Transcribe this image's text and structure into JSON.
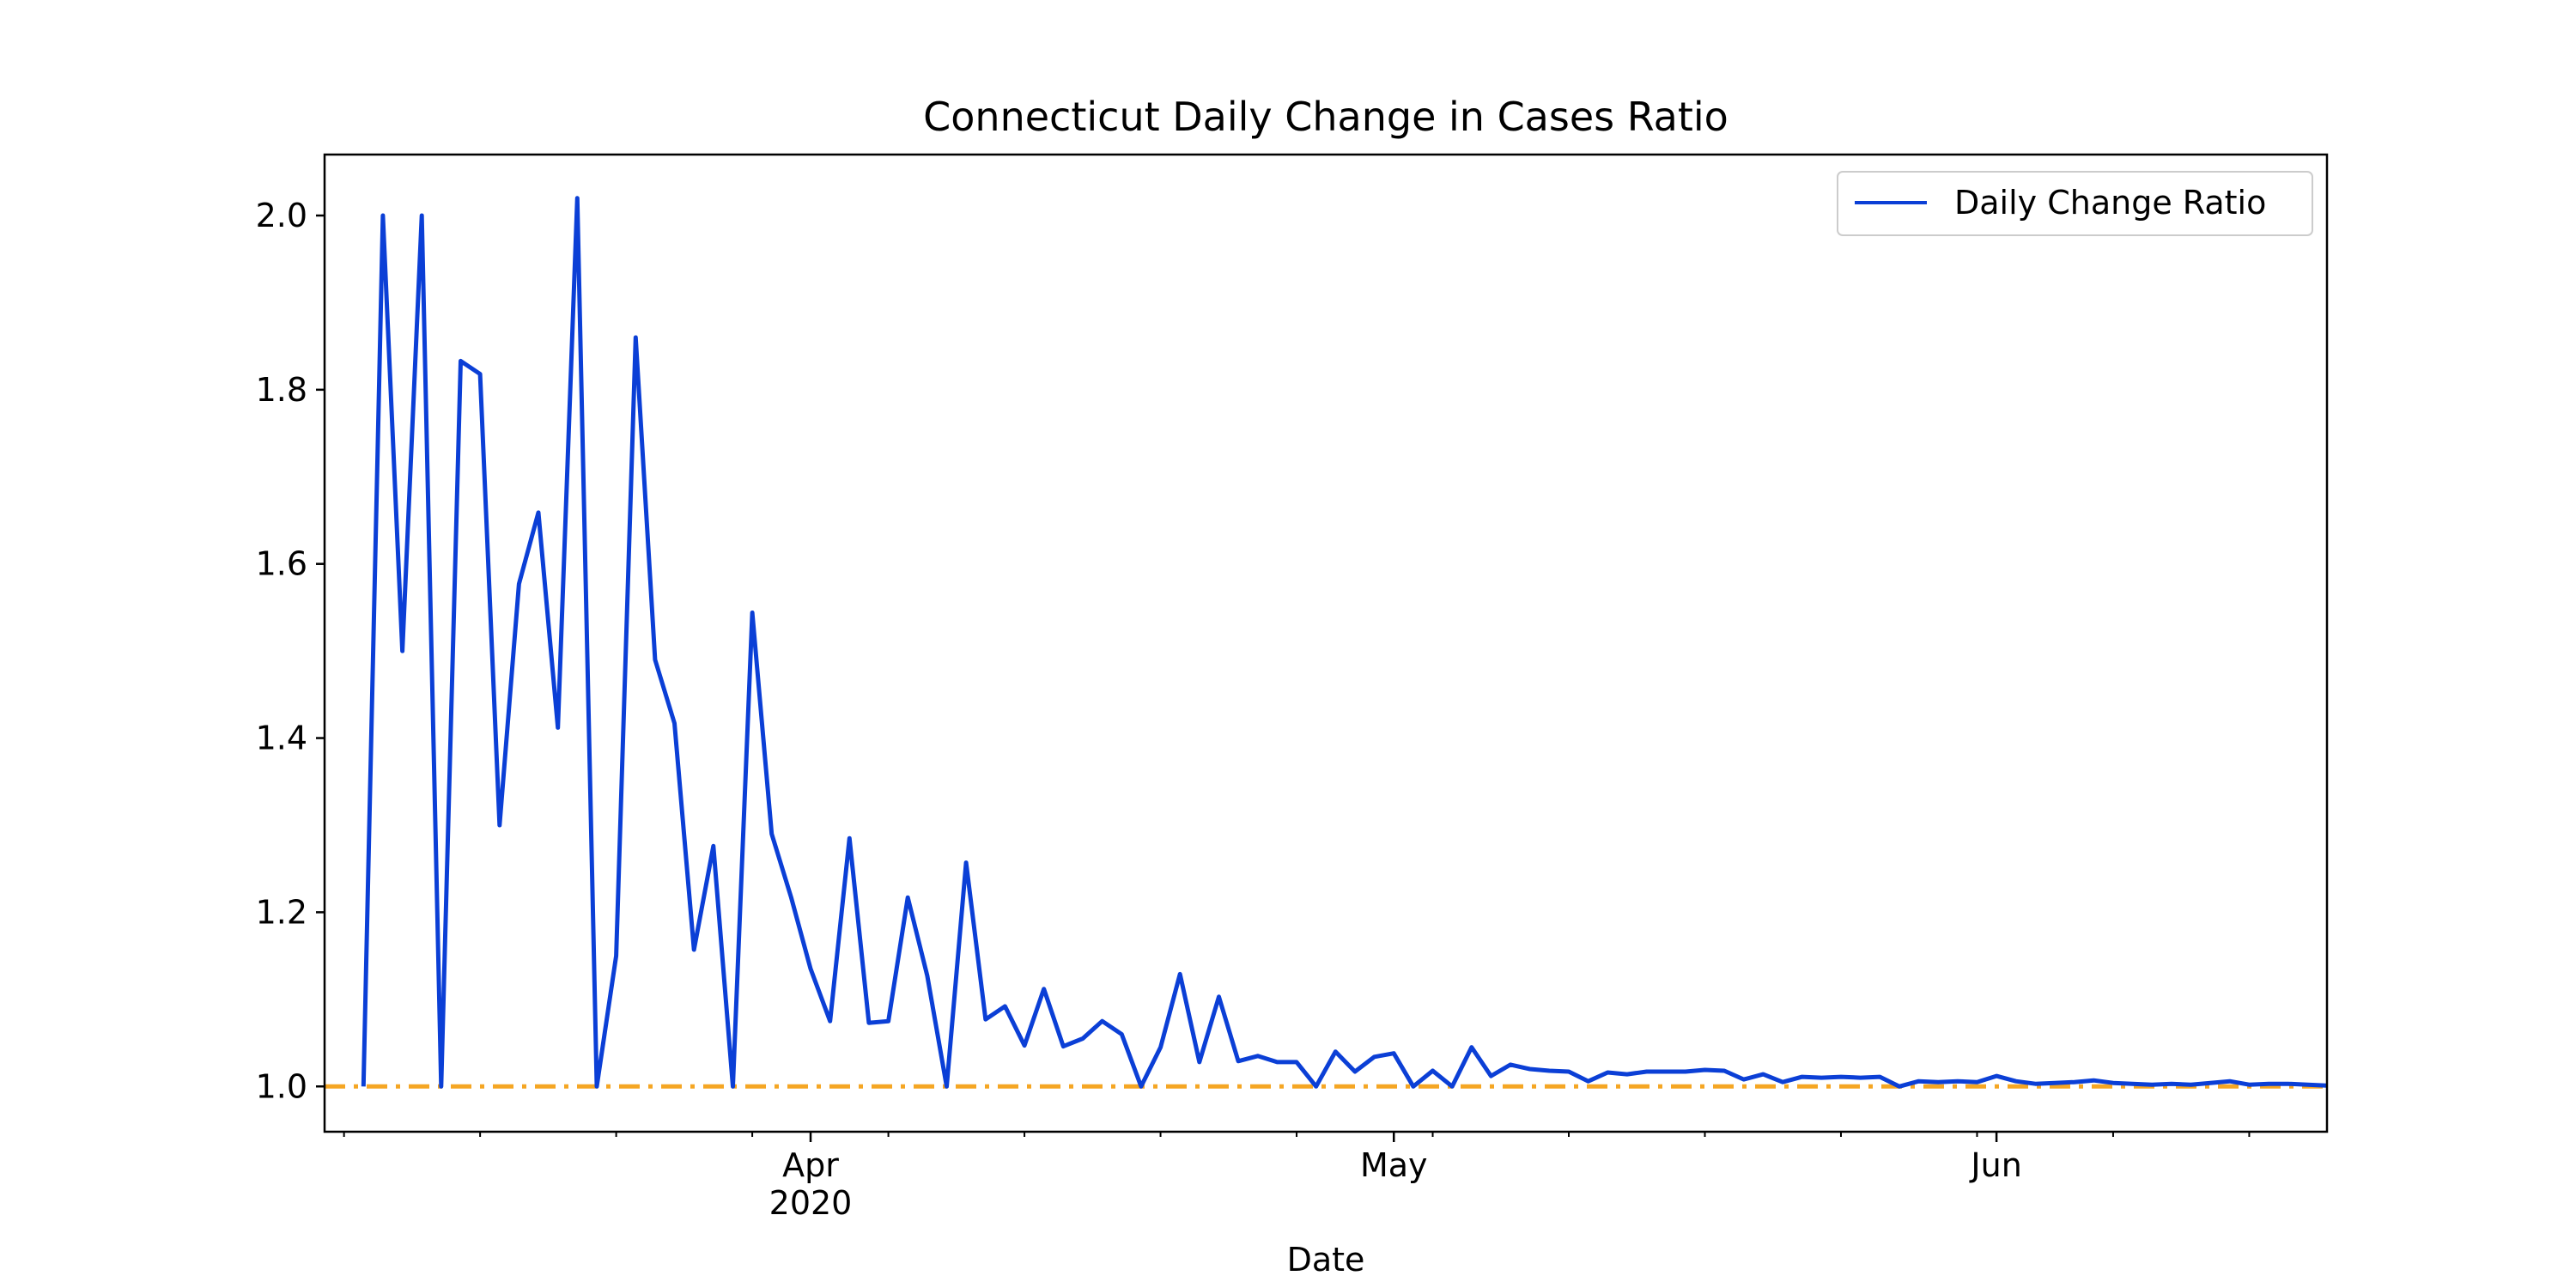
{
  "chart_data": {
    "type": "line",
    "title": "Connecticut Daily Change in Cases Ratio",
    "xlabel": "Date",
    "ylabel": "",
    "x_range": [
      "2020-03-07",
      "2020-06-18"
    ],
    "ylim": [
      0.948,
      2.07
    ],
    "grid": false,
    "legend_position": "top-right",
    "x_ticks": [
      {
        "date": "2020-04-01",
        "label": "Apr",
        "sublabel": "2020"
      },
      {
        "date": "2020-05-01",
        "label": "May",
        "sublabel": ""
      },
      {
        "date": "2020-06-01",
        "label": "Jun",
        "sublabel": ""
      }
    ],
    "y_ticks": [
      {
        "value": 1.0,
        "label": "1.0"
      },
      {
        "value": 1.2,
        "label": "1.2"
      },
      {
        "value": 1.4,
        "label": "1.4"
      },
      {
        "value": 1.6,
        "label": "1.6"
      },
      {
        "value": 1.8,
        "label": "1.8"
      },
      {
        "value": 2.0,
        "label": "2.0"
      }
    ],
    "series": [
      {
        "name": "Daily Change Ratio",
        "color": "#0b3fd6",
        "x": [
          "2020-03-09",
          "2020-03-10",
          "2020-03-11",
          "2020-03-12",
          "2020-03-13",
          "2020-03-14",
          "2020-03-15",
          "2020-03-16",
          "2020-03-17",
          "2020-03-18",
          "2020-03-19",
          "2020-03-20",
          "2020-03-21",
          "2020-03-22",
          "2020-03-23",
          "2020-03-24",
          "2020-03-25",
          "2020-03-26",
          "2020-03-27",
          "2020-03-28",
          "2020-03-29",
          "2020-03-30",
          "2020-03-31",
          "2020-04-01",
          "2020-04-02",
          "2020-04-03",
          "2020-04-04",
          "2020-04-05",
          "2020-04-06",
          "2020-04-07",
          "2020-04-08",
          "2020-04-09",
          "2020-04-10",
          "2020-04-11",
          "2020-04-12",
          "2020-04-13",
          "2020-04-14",
          "2020-04-15",
          "2020-04-16",
          "2020-04-17",
          "2020-04-18",
          "2020-04-19",
          "2020-04-20",
          "2020-04-21",
          "2020-04-22",
          "2020-04-23",
          "2020-04-24",
          "2020-04-25",
          "2020-04-26",
          "2020-04-27",
          "2020-04-28",
          "2020-04-29",
          "2020-04-30",
          "2020-05-01",
          "2020-05-02",
          "2020-05-03",
          "2020-05-04",
          "2020-05-05",
          "2020-05-06",
          "2020-05-07",
          "2020-05-08",
          "2020-05-09",
          "2020-05-10",
          "2020-05-11",
          "2020-05-12",
          "2020-05-13",
          "2020-05-14",
          "2020-05-15",
          "2020-05-16",
          "2020-05-17",
          "2020-05-18",
          "2020-05-19",
          "2020-05-20",
          "2020-05-21",
          "2020-05-22",
          "2020-05-23",
          "2020-05-24",
          "2020-05-25",
          "2020-05-26",
          "2020-05-27",
          "2020-05-28",
          "2020-05-29",
          "2020-05-30",
          "2020-05-31",
          "2020-06-01",
          "2020-06-02",
          "2020-06-03",
          "2020-06-04",
          "2020-06-05",
          "2020-06-06",
          "2020-06-07",
          "2020-06-08",
          "2020-06-09",
          "2020-06-10",
          "2020-06-11",
          "2020-06-12",
          "2020-06-13",
          "2020-06-14",
          "2020-06-15",
          "2020-06-16",
          "2020-06-17",
          "2020-06-18"
        ],
        "values": [
          1.0,
          2.0,
          1.5,
          2.0,
          1.0,
          1.833,
          1.818,
          1.3,
          1.577,
          1.659,
          1.412,
          2.02,
          1.0,
          1.15,
          1.86,
          1.49,
          1.417,
          1.157,
          1.276,
          1.0,
          1.544,
          1.29,
          1.217,
          1.135,
          1.075,
          1.285,
          1.073,
          1.075,
          1.217,
          1.127,
          1.0,
          1.257,
          1.077,
          1.092,
          1.047,
          1.112,
          1.046,
          1.055,
          1.075,
          1.06,
          1.0,
          1.045,
          1.129,
          1.028,
          1.103,
          1.029,
          1.035,
          1.028,
          1.028,
          1.0,
          1.04,
          1.017,
          1.034,
          1.038,
          1.0,
          1.018,
          1.0,
          1.045,
          1.012,
          1.025,
          1.02,
          1.018,
          1.017,
          1.006,
          1.016,
          1.014,
          1.017,
          1.017,
          1.017,
          1.019,
          1.018,
          1.008,
          1.014,
          1.005,
          1.011,
          1.01,
          1.011,
          1.01,
          1.011,
          1.0,
          1.006,
          1.005,
          1.006,
          1.005,
          1.012,
          1.006,
          1.003,
          1.004,
          1.005,
          1.007,
          1.004,
          1.003,
          1.002,
          1.003,
          1.002,
          1.004,
          1.006,
          1.002,
          1.003,
          1.003,
          1.002,
          1.001
        ]
      }
    ],
    "reference_line": {
      "value": 1.0,
      "color": "#f5a623",
      "style": "dash-dot"
    }
  }
}
